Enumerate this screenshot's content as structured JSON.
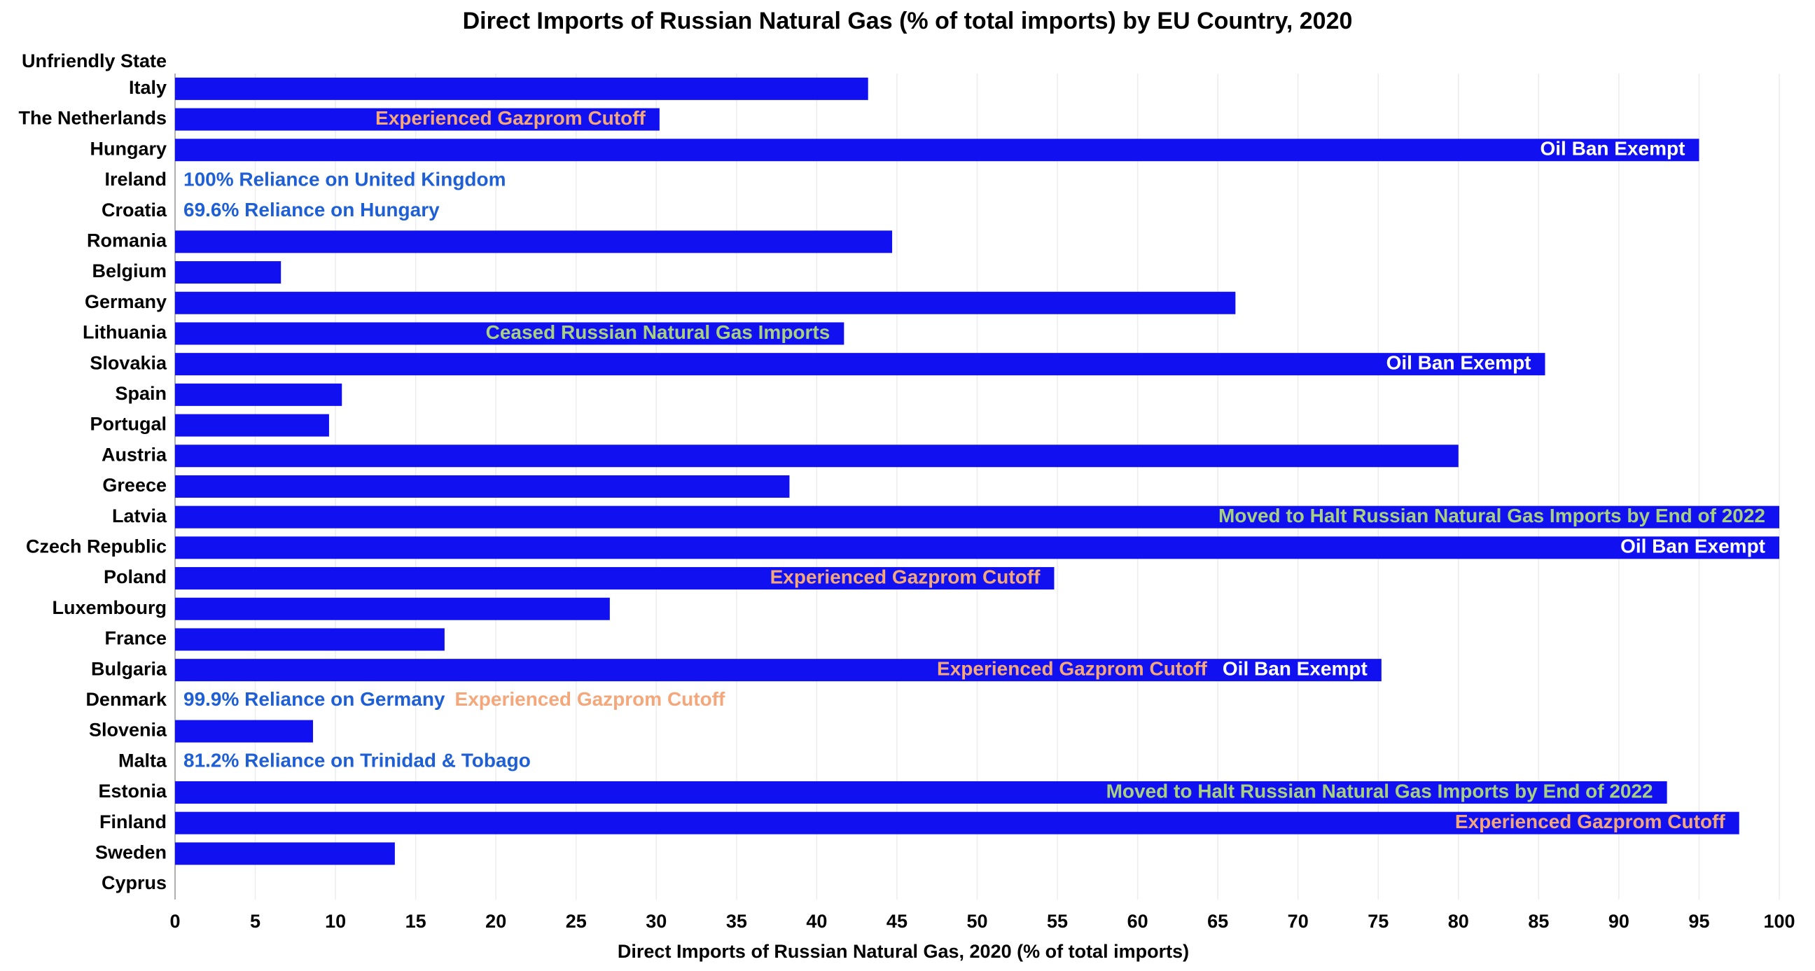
{
  "chart_data": {
    "type": "bar",
    "orientation": "horizontal",
    "title": "Direct Imports of Russian Natural Gas (% of total imports) by EU Country, 2020",
    "xlabel": "Direct Imports of Russian Natural Gas, 2020 (% of total imports)",
    "ylabel": "Unfriendly State",
    "categories": [
      "Italy",
      "The Netherlands",
      "Hungary",
      "Ireland",
      "Croatia",
      "Romania",
      "Belgium",
      "Germany",
      "Lithuania",
      "Slovakia",
      "Spain",
      "Portugal",
      "Austria",
      "Greece",
      "Latvia",
      "Czech Republic",
      "Poland",
      "Luxembourg",
      "France",
      "Bulgaria",
      "Denmark",
      "Slovenia",
      "Malta",
      "Estonia",
      "Finland",
      "Sweden",
      "Cyprus"
    ],
    "values": [
      43.2,
      30.2,
      95.0,
      0,
      0,
      44.7,
      6.6,
      66.1,
      41.7,
      85.4,
      10.4,
      9.6,
      80.0,
      38.3,
      100,
      100,
      54.8,
      27.1,
      16.8,
      75.2,
      0,
      8.6,
      0,
      93.0,
      97.5,
      13.7,
      0
    ],
    "color": "#1010f0",
    "annotations": [
      null,
      [
        {
          "text": "Experienced Gazprom Cutoff",
          "color": "#f4a77a"
        }
      ],
      [
        {
          "text": "Oil Ban Exempt",
          "color": "#ffffff"
        }
      ],
      [
        {
          "text": "100% Reliance on United Kingdom",
          "color": "#1f5fd6"
        }
      ],
      [
        {
          "text": "69.6% Reliance on Hungary",
          "color": "#1f5fd6"
        }
      ],
      null,
      null,
      null,
      [
        {
          "text": "Ceased Russian Natural Gas Imports",
          "color": "#a8d080"
        }
      ],
      [
        {
          "text": "Oil Ban Exempt",
          "color": "#ffffff"
        }
      ],
      null,
      null,
      null,
      null,
      [
        {
          "text": "Moved to Halt Russian Natural Gas Imports by End of 2022",
          "color": "#a8d080"
        }
      ],
      [
        {
          "text": "Oil Ban Exempt",
          "color": "#ffffff"
        }
      ],
      [
        {
          "text": "Experienced Gazprom Cutoff",
          "color": "#f4a77a"
        }
      ],
      null,
      null,
      [
        {
          "text": "Experienced Gazprom Cutoff",
          "color": "#f4a77a"
        },
        {
          "text": "Oil Ban Exempt",
          "color": "#ffffff"
        }
      ],
      [
        {
          "text": "99.9% Reliance on Germany",
          "color": "#1f5fd6"
        },
        {
          "text": "Experienced Gazprom Cutoff",
          "color": "#f4a77a"
        }
      ],
      null,
      [
        {
          "text": "81.2% Reliance on Trinidad & Tobago",
          "color": "#1f5fd6"
        }
      ],
      [
        {
          "text": "Moved to Halt Russian Natural Gas Imports by End of 2022",
          "color": "#a8d080"
        }
      ],
      [
        {
          "text": "Experienced Gazprom Cutoff",
          "color": "#f4a77a"
        }
      ],
      null,
      null
    ],
    "xlim": [
      0,
      100
    ],
    "xticks": [
      0,
      5,
      10,
      15,
      20,
      25,
      30,
      35,
      40,
      45,
      50,
      55,
      60,
      65,
      70,
      75,
      80,
      85,
      90,
      95,
      100
    ],
    "grid": true
  }
}
